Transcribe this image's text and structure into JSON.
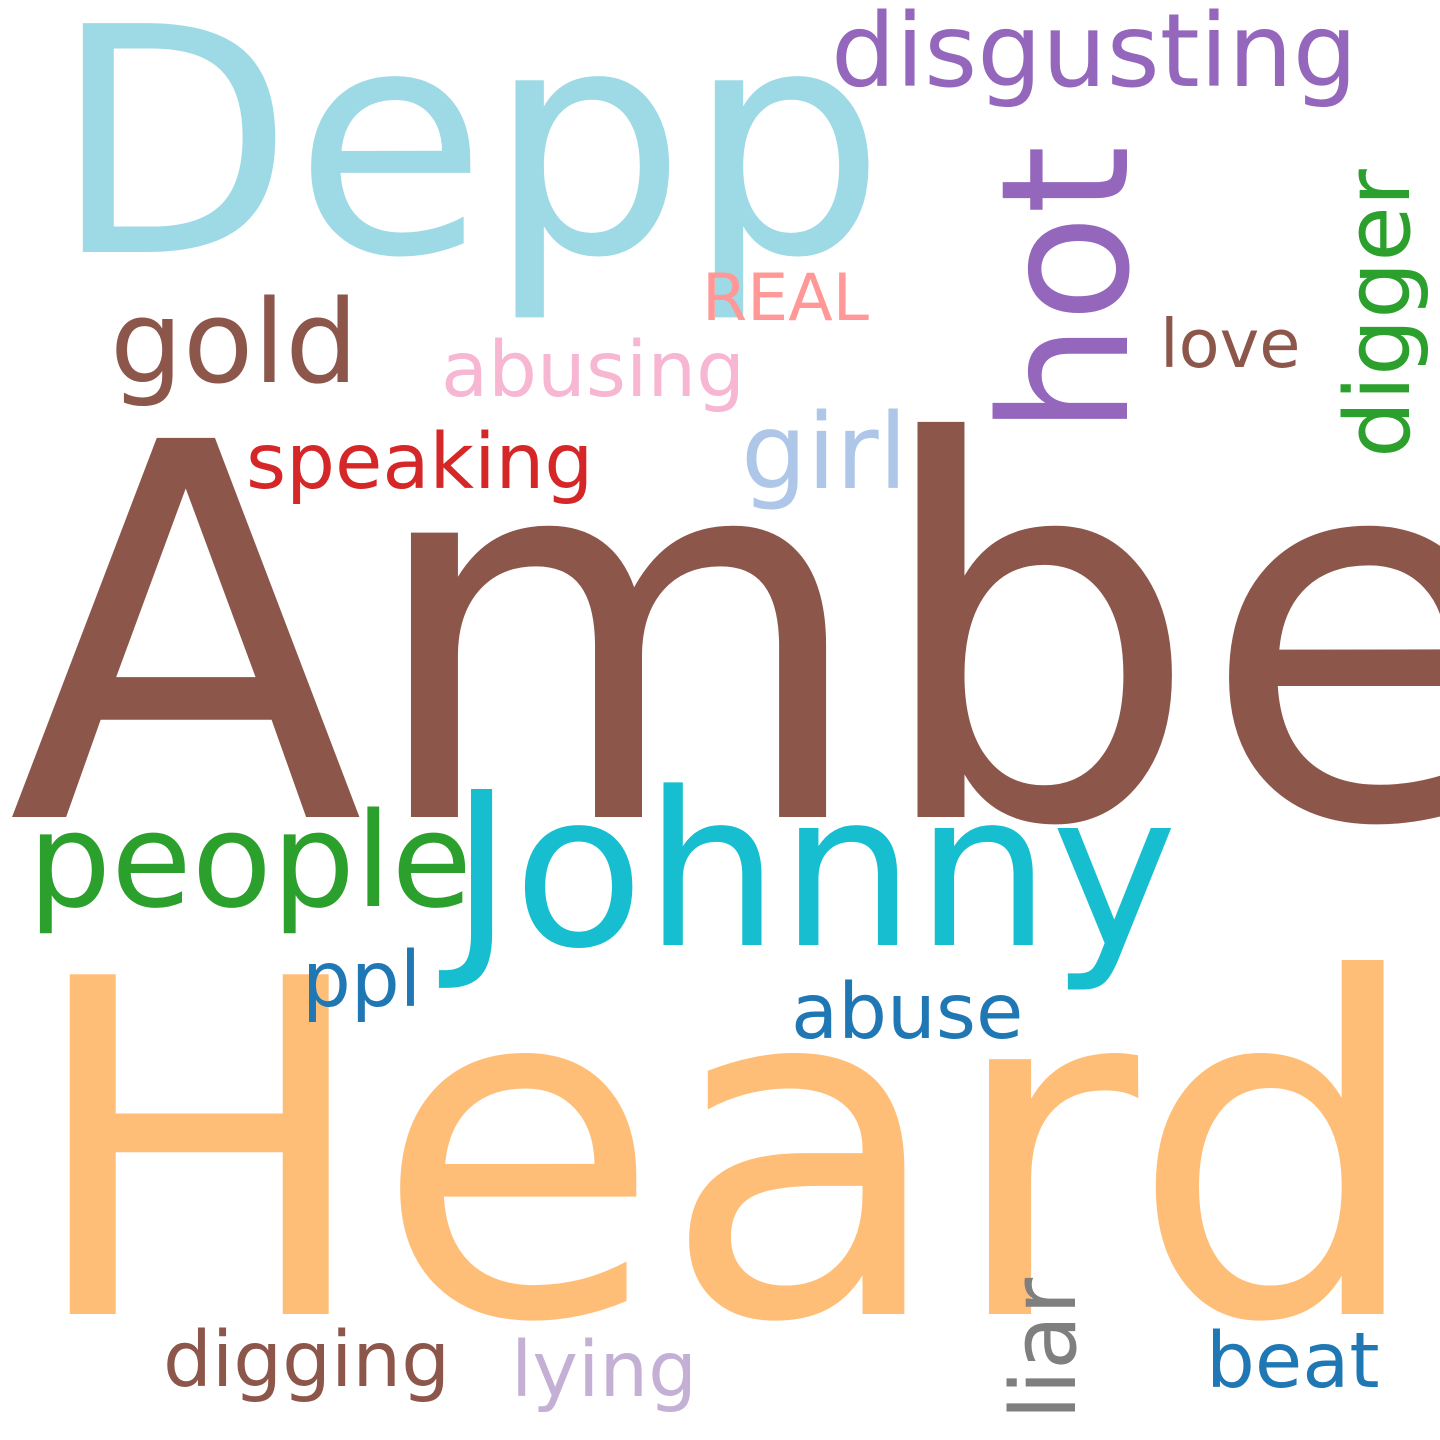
{
  "words": [
    {
      "text": "Amber",
      "color": "#8c564b",
      "orientation": "horizontal"
    },
    {
      "text": "Heard",
      "color": "#ffbe78",
      "orientation": "horizontal"
    },
    {
      "text": "Depp",
      "color": "#9edae5",
      "orientation": "horizontal"
    },
    {
      "text": "Johnny",
      "color": "#17becf",
      "orientation": "horizontal"
    },
    {
      "text": "hot",
      "color": "#9467bd",
      "orientation": "vertical"
    },
    {
      "text": "disgusting",
      "color": "#9467bd",
      "orientation": "horizontal"
    },
    {
      "text": "people",
      "color": "#2ca02c",
      "orientation": "horizontal"
    },
    {
      "text": "gold",
      "color": "#8c564b",
      "orientation": "horizontal"
    },
    {
      "text": "digger",
      "color": "#2ca02c",
      "orientation": "vertical"
    },
    {
      "text": "girl",
      "color": "#aec7e8",
      "orientation": "horizontal"
    },
    {
      "text": "speaking",
      "color": "#d62728",
      "orientation": "horizontal"
    },
    {
      "text": "abusing",
      "color": "#f7b6d2",
      "orientation": "horizontal"
    },
    {
      "text": "REAL",
      "color": "#ff9896",
      "orientation": "horizontal"
    },
    {
      "text": "love",
      "color": "#8c564b",
      "orientation": "horizontal"
    },
    {
      "text": "ppl",
      "color": "#1f77b4",
      "orientation": "horizontal"
    },
    {
      "text": "abuse",
      "color": "#1f77b4",
      "orientation": "horizontal"
    },
    {
      "text": "liar",
      "color": "#7f7f7f",
      "orientation": "vertical"
    },
    {
      "text": "digging",
      "color": "#8c564b",
      "orientation": "horizontal"
    },
    {
      "text": "lying",
      "color": "#c5b0d5",
      "orientation": "horizontal"
    },
    {
      "text": "beat",
      "color": "#1f77b4",
      "orientation": "horizontal"
    }
  ]
}
